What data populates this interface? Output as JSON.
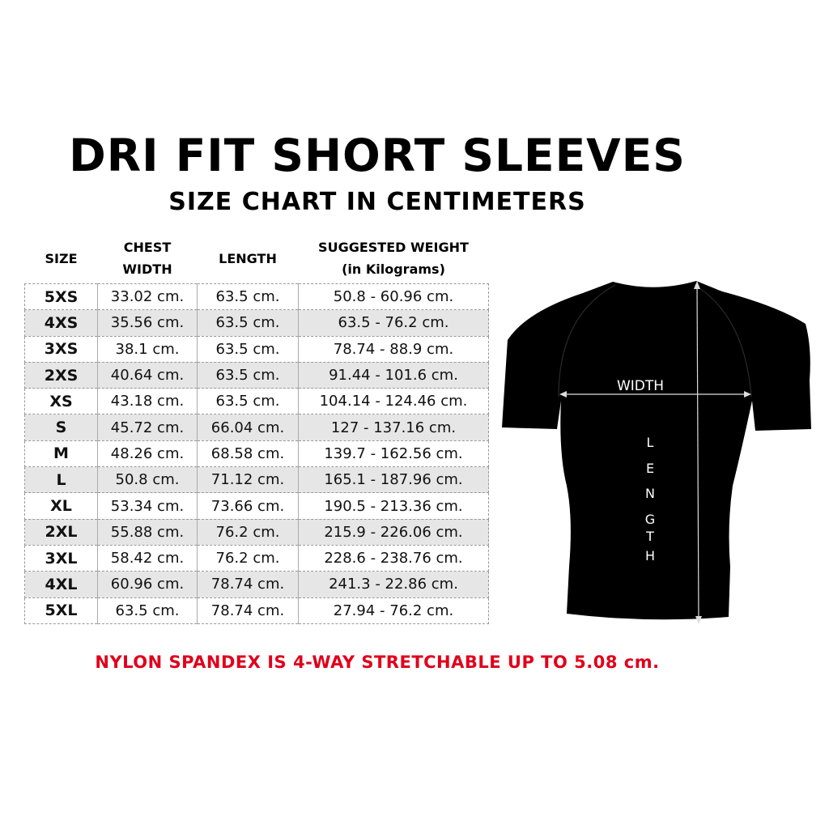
{
  "title": "DRI FIT SHORT SLEEVES",
  "subtitle": "SIZE CHART IN CENTIMETERS",
  "table": {
    "headers": [
      "SIZE",
      "CHEST WIDTH",
      "LENGTH",
      "SUGGESTED WEIGHT (in Kilograms)"
    ],
    "header_lines": {
      "chest": [
        "CHEST",
        "WIDTH"
      ],
      "weight": [
        "SUGGESTED WEIGHT",
        "(in Kilograms)"
      ]
    },
    "rows": [
      [
        "5XS",
        "33.02 cm.",
        "63.5 cm.",
        "50.8 - 60.96 cm."
      ],
      [
        "4XS",
        "35.56 cm.",
        "63.5 cm.",
        "63.5 - 76.2 cm."
      ],
      [
        "3XS",
        "38.1 cm.",
        "63.5 cm.",
        "78.74 - 88.9 cm."
      ],
      [
        "2XS",
        "40.64 cm.",
        "63.5 cm.",
        "91.44 - 101.6 cm."
      ],
      [
        "XS",
        "43.18 cm.",
        "63.5 cm.",
        "104.14 - 124.46 cm."
      ],
      [
        "S",
        "45.72 cm.",
        "66.04 cm.",
        "127 - 137.16 cm."
      ],
      [
        "M",
        "48.26 cm.",
        "68.58 cm.",
        "139.7 - 162.56 cm."
      ],
      [
        "L",
        "50.8 cm.",
        "71.12 cm.",
        "165.1 - 187.96 cm."
      ],
      [
        "XL",
        "53.34 cm.",
        "73.66 cm.",
        "190.5 - 213.36 cm."
      ],
      [
        "2XL",
        "55.88 cm.",
        "76.2 cm.",
        "215.9 - 226.06 cm."
      ],
      [
        "3XL",
        "58.42 cm.",
        "76.2 cm.",
        "228.6 - 238.76 cm."
      ],
      [
        "4XL",
        "60.96 cm.",
        "78.74 cm.",
        "241.3 - 22.86 cm."
      ],
      [
        "5XL",
        "63.5 cm.",
        "78.74 cm.",
        "27.94 - 76.2 cm."
      ]
    ]
  },
  "diagram": {
    "width_label": "WIDTH",
    "length_label": "LENGTH",
    "length_letters": [
      "L",
      "E",
      "N",
      "G",
      "T",
      "H"
    ],
    "shirt_color": "#000000"
  },
  "note": "NYLON SPANDEX IS 4-WAY STRETCHABLE UP TO 5.08 cm.",
  "colors": {
    "note": "#e0001b",
    "row_shade": "#e6e6e6"
  }
}
